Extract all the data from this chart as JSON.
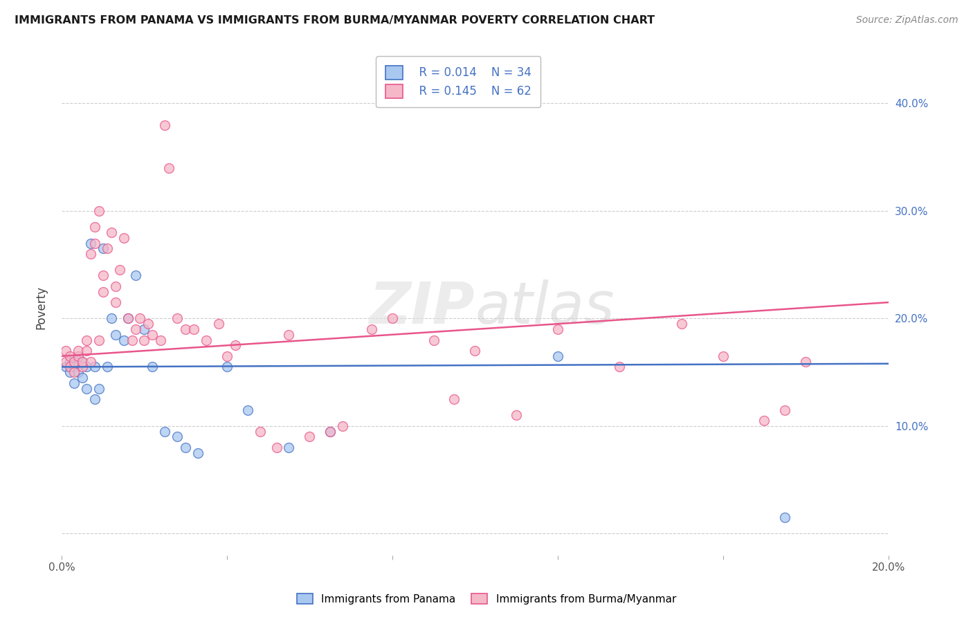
{
  "title": "IMMIGRANTS FROM PANAMA VS IMMIGRANTS FROM BURMA/MYANMAR POVERTY CORRELATION CHART",
  "source": "Source: ZipAtlas.com",
  "xlabel_panama": "Immigrants from Panama",
  "xlabel_burma": "Immigrants from Burma/Myanmar",
  "ylabel": "Poverty",
  "watermark": "ZIPatlas",
  "xlim": [
    0.0,
    0.2
  ],
  "ylim": [
    -0.02,
    0.44
  ],
  "yticks": [
    0.0,
    0.1,
    0.2,
    0.3,
    0.4
  ],
  "legend_R_panama": "R = 0.014",
  "legend_N_panama": "N = 34",
  "legend_R_burma": "R = 0.145",
  "legend_N_burma": "N = 62",
  "color_panama": "#a8c8f0",
  "color_burma": "#f5b8c8",
  "color_line_panama": "#4472c4",
  "color_line_burma": "#e8558a",
  "color_text": "#4472c4",
  "panama_x": [
    0.001,
    0.002,
    0.002,
    0.003,
    0.003,
    0.004,
    0.004,
    0.005,
    0.005,
    0.006,
    0.006,
    0.007,
    0.008,
    0.008,
    0.009,
    0.01,
    0.011,
    0.012,
    0.013,
    0.015,
    0.016,
    0.018,
    0.02,
    0.022,
    0.025,
    0.028,
    0.03,
    0.033,
    0.04,
    0.045,
    0.055,
    0.065,
    0.12,
    0.175
  ],
  "panama_y": [
    0.155,
    0.15,
    0.16,
    0.155,
    0.14,
    0.165,
    0.15,
    0.16,
    0.145,
    0.155,
    0.135,
    0.27,
    0.155,
    0.125,
    0.135,
    0.265,
    0.155,
    0.2,
    0.185,
    0.18,
    0.2,
    0.24,
    0.19,
    0.155,
    0.095,
    0.09,
    0.08,
    0.075,
    0.155,
    0.115,
    0.08,
    0.095,
    0.165,
    0.015
  ],
  "burma_x": [
    0.001,
    0.001,
    0.002,
    0.002,
    0.003,
    0.003,
    0.004,
    0.004,
    0.005,
    0.005,
    0.006,
    0.006,
    0.007,
    0.007,
    0.008,
    0.008,
    0.009,
    0.009,
    0.01,
    0.01,
    0.011,
    0.012,
    0.013,
    0.013,
    0.014,
    0.015,
    0.016,
    0.017,
    0.018,
    0.019,
    0.02,
    0.021,
    0.022,
    0.024,
    0.025,
    0.026,
    0.028,
    0.03,
    0.032,
    0.035,
    0.038,
    0.04,
    0.042,
    0.048,
    0.052,
    0.055,
    0.06,
    0.065,
    0.068,
    0.075,
    0.08,
    0.09,
    0.095,
    0.1,
    0.11,
    0.12,
    0.135,
    0.15,
    0.16,
    0.17,
    0.175,
    0.18
  ],
  "burma_y": [
    0.16,
    0.17,
    0.155,
    0.165,
    0.15,
    0.16,
    0.165,
    0.17,
    0.155,
    0.16,
    0.17,
    0.18,
    0.16,
    0.26,
    0.27,
    0.285,
    0.3,
    0.18,
    0.225,
    0.24,
    0.265,
    0.28,
    0.215,
    0.23,
    0.245,
    0.275,
    0.2,
    0.18,
    0.19,
    0.2,
    0.18,
    0.195,
    0.185,
    0.18,
    0.38,
    0.34,
    0.2,
    0.19,
    0.19,
    0.18,
    0.195,
    0.165,
    0.175,
    0.095,
    0.08,
    0.185,
    0.09,
    0.095,
    0.1,
    0.19,
    0.2,
    0.18,
    0.125,
    0.17,
    0.11,
    0.19,
    0.155,
    0.195,
    0.165,
    0.105,
    0.115,
    0.16
  ],
  "line_panama_x0": 0.0,
  "line_panama_x1": 0.2,
  "line_panama_y0": 0.155,
  "line_panama_y1": 0.158,
  "line_burma_x0": 0.0,
  "line_burma_x1": 0.2,
  "line_burma_y0": 0.165,
  "line_burma_y1": 0.215
}
